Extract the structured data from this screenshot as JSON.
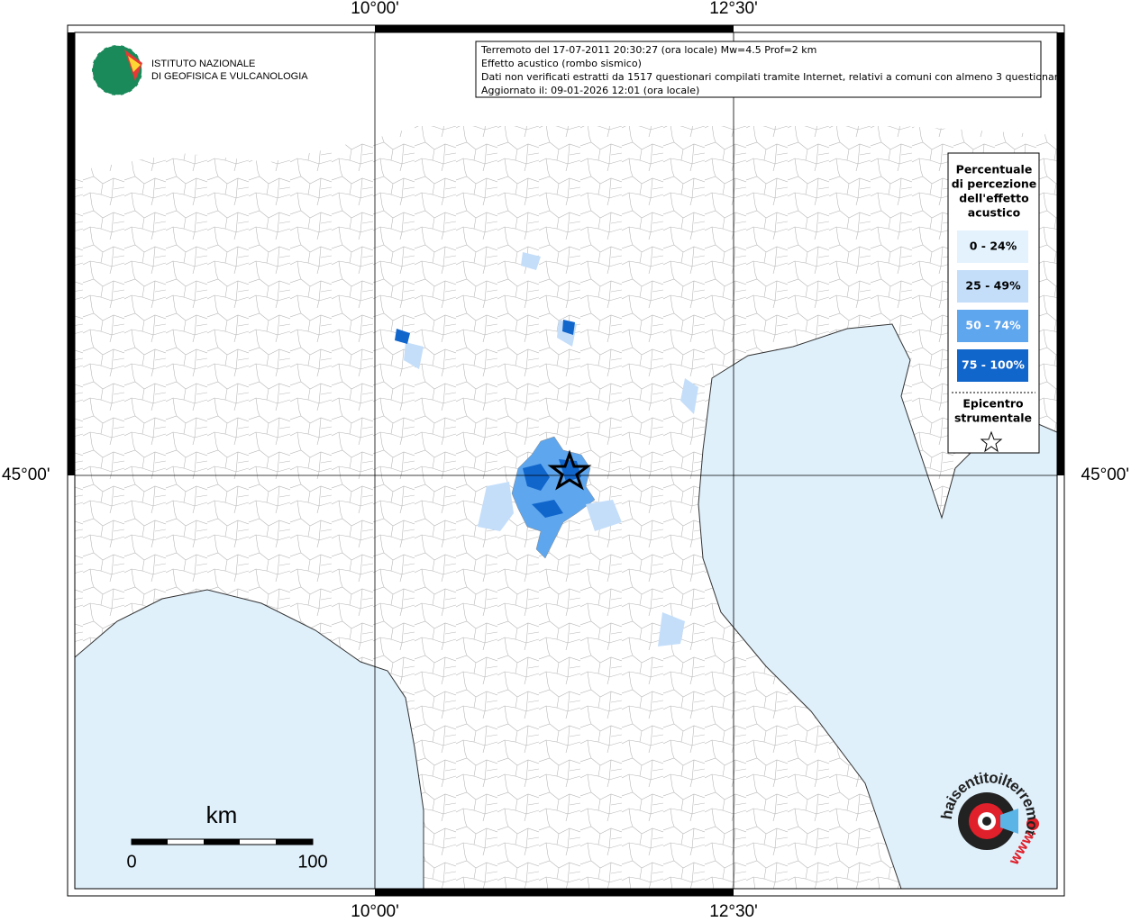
{
  "graticule": {
    "top": [
      "10°00'",
      "12°30'"
    ],
    "bottom": [
      "10°00'",
      "12°30'"
    ],
    "left": [
      "45°00'"
    ],
    "right": [
      "45°00'"
    ]
  },
  "logo": {
    "lines": [
      "ISTITUTO NAZIONALE",
      "DI GEOFISICA E VULCANOLOGIA"
    ]
  },
  "info": {
    "lines": [
      "Terremoto del 17-07-2011 20:30:27 (ora locale) Mw=4.5 Prof=2 km",
      "Effetto acustico (rombo sismico)",
      "Dati non verificati estratti da 1517 questionari compilati tramite Internet, relativi a comuni con almeno 3 questionari.",
      "Aggiornato il: 09-01-2026 12:01 (ora locale)"
    ]
  },
  "legend": {
    "title_lines": [
      "Percentuale",
      "di percezione",
      "dell'effetto",
      "acustico"
    ],
    "classes": [
      {
        "label": "0 - 24%",
        "color": "#e3f2fd"
      },
      {
        "label": "25 - 49%",
        "color": "#c4defa"
      },
      {
        "label": "50 - 74%",
        "color": "#5ea6ee"
      },
      {
        "label": "75 - 100%",
        "color": "#1166cc"
      }
    ],
    "epicentre_lines": [
      "Epicentro",
      "strumentale"
    ]
  },
  "scale_bar": {
    "unit": "km",
    "labels": [
      "0",
      "100"
    ]
  },
  "badge": {
    "text": "haisentitoilterremoto.it",
    "www": "WWW."
  }
}
